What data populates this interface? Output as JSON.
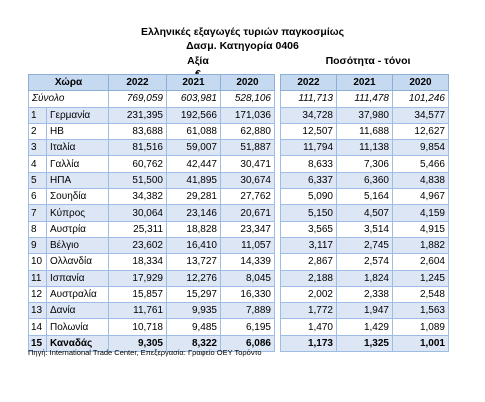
{
  "title": "Ελληνικές εξαγωγές τυριών παγκοσμίως",
  "subtitle": "Δασμ. Κατηγορία 0406",
  "group_value": "Αξία €",
  "group_quantity": "Ποσότητα - τόνοι",
  "headers": {
    "country": "Χώρα",
    "v2022": "2022",
    "v2021": "2021",
    "v2020": "2020",
    "q2022": "2022",
    "q2021": "2021",
    "q2020": "2020"
  },
  "total": {
    "label": "Σύνολο",
    "v2022": "769,059",
    "v2021": "603,981",
    "v2020": "528,106",
    "q2022": "111,713",
    "q2021": "111,478",
    "q2020": "101,246"
  },
  "rows": [
    {
      "idx": "1",
      "country": "Γερμανία",
      "v2022": "231,395",
      "v2021": "192,566",
      "v2020": "171,036",
      "q2022": "34,728",
      "q2021": "37,980",
      "q2020": "34,577"
    },
    {
      "idx": "2",
      "country": "ΗΒ",
      "v2022": "83,688",
      "v2021": "61,088",
      "v2020": "62,880",
      "q2022": "12,507",
      "q2021": "11,688",
      "q2020": "12,627"
    },
    {
      "idx": "3",
      "country": "Ιταλία",
      "v2022": "81,516",
      "v2021": "59,007",
      "v2020": "51,887",
      "q2022": "11,794",
      "q2021": "11,138",
      "q2020": "9,854"
    },
    {
      "idx": "4",
      "country": "Γαλλία",
      "v2022": "60,762",
      "v2021": "42,447",
      "v2020": "30,471",
      "q2022": "8,633",
      "q2021": "7,306",
      "q2020": "5,466"
    },
    {
      "idx": "5",
      "country": "ΗΠΑ",
      "v2022": "51,500",
      "v2021": "41,895",
      "v2020": "30,674",
      "q2022": "6,337",
      "q2021": "6,360",
      "q2020": "4,838"
    },
    {
      "idx": "6",
      "country": "Σουηδία",
      "v2022": "34,382",
      "v2021": "29,281",
      "v2020": "27,762",
      "q2022": "5,090",
      "q2021": "5,164",
      "q2020": "4,967"
    },
    {
      "idx": "7",
      "country": "Κύπρος",
      "v2022": "30,064",
      "v2021": "23,146",
      "v2020": "20,671",
      "q2022": "5,150",
      "q2021": "4,507",
      "q2020": "4,159"
    },
    {
      "idx": "8",
      "country": "Αυστρία",
      "v2022": "25,311",
      "v2021": "18,828",
      "v2020": "23,347",
      "q2022": "3,565",
      "q2021": "3,514",
      "q2020": "4,915"
    },
    {
      "idx": "9",
      "country": "Βέλγιο",
      "v2022": "23,602",
      "v2021": "16,410",
      "v2020": "11,057",
      "q2022": "3,117",
      "q2021": "2,745",
      "q2020": "1,882"
    },
    {
      "idx": "10",
      "country": "Ολλανδία",
      "v2022": "18,334",
      "v2021": "13,727",
      "v2020": "14,339",
      "q2022": "2,867",
      "q2021": "2,574",
      "q2020": "2,604"
    },
    {
      "idx": "11",
      "country": "Ισπανία",
      "v2022": "17,929",
      "v2021": "12,276",
      "v2020": "8,045",
      "q2022": "2,188",
      "q2021": "1,824",
      "q2020": "1,245"
    },
    {
      "idx": "12",
      "country": "Αυστραλία",
      "v2022": "15,857",
      "v2021": "15,297",
      "v2020": "16,330",
      "q2022": "2,002",
      "q2021": "2,338",
      "q2020": "2,548"
    },
    {
      "idx": "13",
      "country": "Δανία",
      "v2022": "11,761",
      "v2021": "9,935",
      "v2020": "7,889",
      "q2022": "1,772",
      "q2021": "1,947",
      "q2020": "1,563"
    },
    {
      "idx": "14",
      "country": "Πολωνία",
      "v2022": "10,718",
      "v2021": "9,485",
      "v2020": "6,195",
      "q2022": "1,470",
      "q2021": "1,429",
      "q2020": "1,089"
    },
    {
      "idx": "15",
      "country": "Καναδάς",
      "v2022": "9,305",
      "v2021": "8,322",
      "v2020": "6,086",
      "q2022": "1,173",
      "q2021": "1,325",
      "q2020": "1,001"
    }
  ],
  "source": "Πηγή: International Trade Center,  Επεξεργασία: Γραφείο ΟΕΥ Τορόντο"
}
